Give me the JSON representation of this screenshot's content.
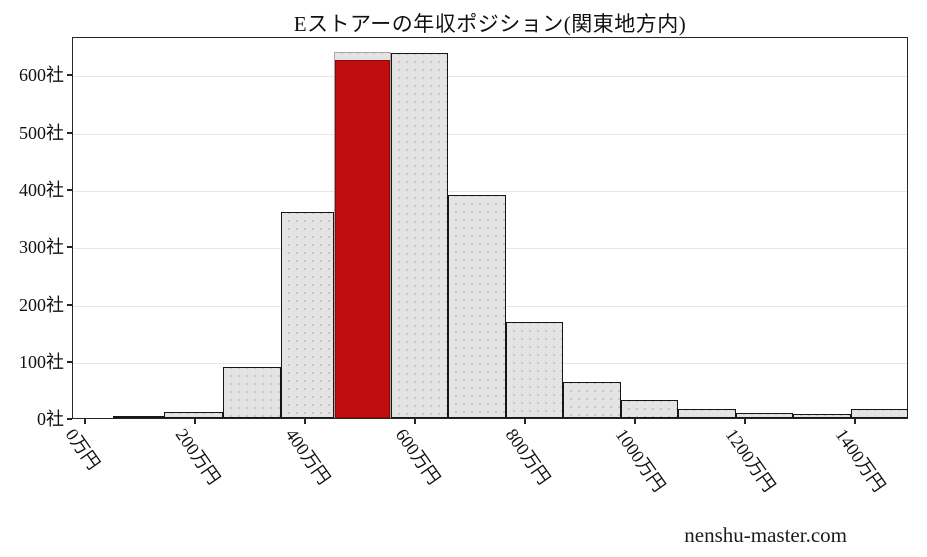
{
  "watermark": "nenshu-master.com",
  "chart_data": {
    "type": "bar",
    "subtype": "histogram",
    "title": "Eストアーの年収ポジション(関東地方内)",
    "xlabel": "",
    "ylabel": "",
    "x_unit": "万円",
    "y_unit": "社",
    "x_range": [
      -24,
      1496
    ],
    "y_range": [
      0,
      667
    ],
    "grid": "horizontal-only",
    "legend": "none",
    "x_ticks": [
      {
        "value": 0,
        "label": "0万円"
      },
      {
        "value": 200,
        "label": "200万円"
      },
      {
        "value": 400,
        "label": "400万円"
      },
      {
        "value": 600,
        "label": "600万円"
      },
      {
        "value": 800,
        "label": "800万円"
      },
      {
        "value": 1000,
        "label": "1000万円"
      },
      {
        "value": 1200,
        "label": "1200万円"
      },
      {
        "value": 1400,
        "label": "1400万円"
      }
    ],
    "y_ticks": [
      {
        "value": 0,
        "label": "0社"
      },
      {
        "value": 100,
        "label": "100社"
      },
      {
        "value": 200,
        "label": "200社"
      },
      {
        "value": 300,
        "label": "300社"
      },
      {
        "value": 400,
        "label": "400社"
      },
      {
        "value": 500,
        "label": "500社"
      },
      {
        "value": 600,
        "label": "600社"
      }
    ],
    "bins": [
      {
        "from": 49,
        "to": 142,
        "count": 2,
        "highlight": false
      },
      {
        "from": 142,
        "to": 249,
        "count": 10,
        "highlight": false
      },
      {
        "from": 249,
        "to": 355,
        "count": 90,
        "highlight": false
      },
      {
        "from": 355,
        "to": 451,
        "count": 360,
        "highlight": false
      },
      {
        "from": 451,
        "to": 555,
        "count": 626,
        "highlight": true,
        "bg_count": 639
      },
      {
        "from": 555,
        "to": 658,
        "count": 638,
        "highlight": false
      },
      {
        "from": 658,
        "to": 764,
        "count": 390,
        "highlight": false
      },
      {
        "from": 764,
        "to": 867,
        "count": 168,
        "highlight": false
      },
      {
        "from": 867,
        "to": 973,
        "count": 63,
        "highlight": false
      },
      {
        "from": 973,
        "to": 1076,
        "count": 32,
        "highlight": false
      },
      {
        "from": 1076,
        "to": 1182,
        "count": 16,
        "highlight": false
      },
      {
        "from": 1182,
        "to": 1285,
        "count": 9,
        "highlight": false
      },
      {
        "from": 1285,
        "to": 1391,
        "count": 7,
        "highlight": false
      },
      {
        "from": 1391,
        "to": 1495,
        "count": 15,
        "highlight": false
      }
    ],
    "colors": {
      "bar_fill": "#e4e4e4",
      "bar_edge": "#161616",
      "highlight_fill": "#c00d0d",
      "highlight_edge": "#8d0707",
      "grid": "#e7e7e7",
      "text": "#111111"
    }
  }
}
